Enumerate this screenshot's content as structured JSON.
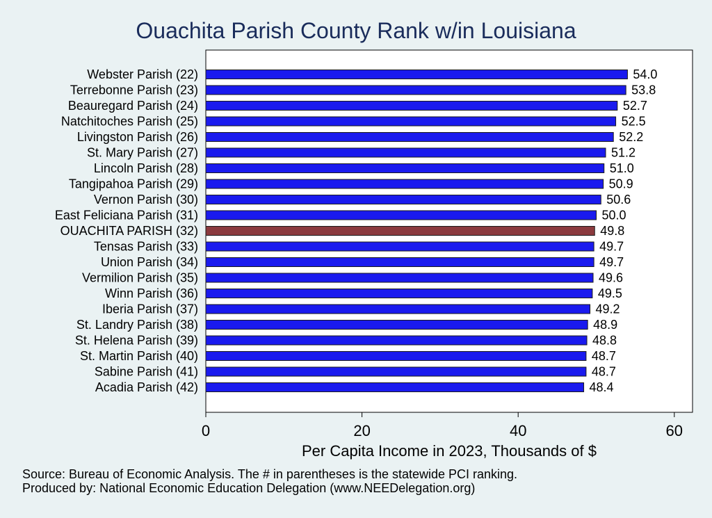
{
  "chart_data": {
    "type": "bar",
    "orientation": "horizontal",
    "title": "Ouachita Parish County Rank w/in Louisiana",
    "xlabel": "Per Capita Income in 2023, Thousands of $",
    "ylabel": "",
    "xlim": [
      0,
      62
    ],
    "xticks": [
      0,
      20,
      40,
      60
    ],
    "grid": false,
    "categories": [
      "Webster Parish (22)",
      "Terrebonne Parish (23)",
      "Beauregard Parish (24)",
      "Natchitoches Parish (25)",
      "Livingston Parish (26)",
      "St. Mary Parish (27)",
      "Lincoln Parish (28)",
      "Tangipahoa Parish (29)",
      "Vernon Parish (30)",
      "East Feliciana Parish (31)",
      "OUACHITA PARISH (32)",
      "Tensas Parish (33)",
      "Union Parish (34)",
      "Vermilion Parish (35)",
      "Winn Parish (36)",
      "Iberia Parish (37)",
      "St. Landry Parish (38)",
      "St. Helena Parish (39)",
      "St. Martin Parish (40)",
      "Sabine Parish (41)",
      "Acadia Parish (42)"
    ],
    "values": [
      54.0,
      53.8,
      52.7,
      52.5,
      52.2,
      51.2,
      51.0,
      50.9,
      50.6,
      50.0,
      49.8,
      49.7,
      49.7,
      49.6,
      49.5,
      49.2,
      48.9,
      48.8,
      48.7,
      48.7,
      48.4
    ],
    "value_labels": [
      "54.0",
      "53.8",
      "52.7",
      "52.5",
      "52.2",
      "51.2",
      "51.0",
      "50.9",
      "50.6",
      "50.0",
      "49.8",
      "49.7",
      "49.7",
      "49.6",
      "49.5",
      "49.2",
      "48.9",
      "48.8",
      "48.7",
      "48.7",
      "48.4"
    ],
    "highlight_index": 10,
    "colors": {
      "bar": "#1a1aee",
      "highlight": "#8b3a3e",
      "bar_edge": "#1a1a1a",
      "title": "#1a2c5b"
    }
  },
  "notes": {
    "source": "Source: Bureau of Economic Analysis. The # in parentheses is the statewide PCI ranking.",
    "produced_by": "Produced by: National Economic Education Delegation (www.NEEDelegation.org)"
  }
}
